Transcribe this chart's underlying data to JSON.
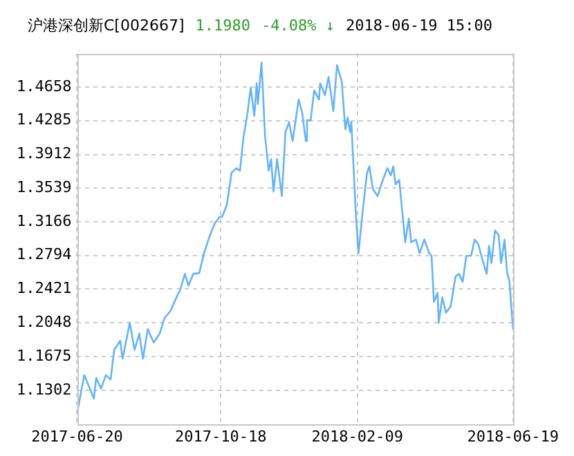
{
  "chart_data": {
    "type": "line",
    "title": "沪港深创新C[002667]",
    "annotations": [
      "1.1980",
      "-4.08% ↓",
      "2018-06-19 15:00"
    ],
    "x": [
      "2017-06-20",
      "2017-06-22",
      "2017-06-26",
      "2017-06-30",
      "2017-07-04",
      "2017-07-06",
      "2017-07-10",
      "2017-07-14",
      "2017-07-18",
      "2017-07-21",
      "2017-07-26",
      "2017-07-28",
      "2017-08-03",
      "2017-08-07",
      "2017-08-11",
      "2017-08-14",
      "2017-08-18",
      "2017-08-23",
      "2017-08-28",
      "2017-09-01",
      "2017-09-06",
      "2017-09-11",
      "2017-09-14",
      "2017-09-18",
      "2017-09-21",
      "2017-09-25",
      "2017-09-30",
      "2017-10-04",
      "2017-10-09",
      "2017-10-13",
      "2017-10-17",
      "2017-10-19",
      "2017-10-23",
      "2017-10-27",
      "2017-10-31",
      "2017-11-03",
      "2017-11-06",
      "2017-11-09",
      "2017-11-12",
      "2017-11-15",
      "2017-11-17",
      "2017-11-18",
      "2017-11-21",
      "2017-11-24",
      "2017-11-27",
      "2017-11-29",
      "2017-12-01",
      "2017-12-04",
      "2017-12-08",
      "2017-12-11",
      "2017-12-14",
      "2017-12-17",
      "2017-12-22",
      "2017-12-25",
      "2017-12-28",
      "2017-12-29",
      "2018-01-01",
      "2018-01-04",
      "2018-01-08",
      "2018-01-09",
      "2018-01-13",
      "2018-01-16",
      "2018-01-19",
      "2018-01-20",
      "2018-01-23",
      "2018-01-27",
      "2018-01-30",
      "2018-02-01",
      "2018-02-03",
      "2018-02-04",
      "2018-02-08",
      "2018-02-10",
      "2018-02-14",
      "2018-02-17",
      "2018-02-19",
      "2018-02-22",
      "2018-02-26",
      "2018-03-01",
      "2018-03-06",
      "2018-03-09",
      "2018-03-11",
      "2018-03-13",
      "2018-03-16",
      "2018-03-21",
      "2018-03-24",
      "2018-03-26",
      "2018-03-30",
      "2018-04-02",
      "2018-04-06",
      "2018-04-10",
      "2018-04-12",
      "2018-04-14",
      "2018-04-17",
      "2018-04-18",
      "2018-04-21",
      "2018-04-24",
      "2018-04-28",
      "2018-05-02",
      "2018-05-05",
      "2018-05-08",
      "2018-05-11",
      "2018-05-15",
      "2018-05-18",
      "2018-05-21",
      "2018-05-24",
      "2018-05-28",
      "2018-05-30",
      "2018-06-01",
      "2018-06-04",
      "2018-06-07",
      "2018-06-09",
      "2018-06-12",
      "2018-06-14",
      "2018-06-16",
      "2018-06-19"
    ],
    "series": [
      {
        "color": "#66b3f7",
        "values": [
          1.104,
          1.119,
          1.147,
          1.134,
          1.121,
          1.144,
          1.132,
          1.147,
          1.142,
          1.175,
          1.185,
          1.165,
          1.205,
          1.175,
          1.193,
          1.165,
          1.198,
          1.183,
          1.193,
          1.21,
          1.218,
          1.233,
          1.241,
          1.259,
          1.246,
          1.259,
          1.26,
          1.282,
          1.302,
          1.315,
          1.322,
          1.322,
          1.335,
          1.371,
          1.376,
          1.373,
          1.411,
          1.434,
          1.465,
          1.434,
          1.47,
          1.447,
          1.493,
          1.411,
          1.373,
          1.386,
          1.35,
          1.386,
          1.345,
          1.416,
          1.427,
          1.406,
          1.452,
          1.437,
          1.406,
          1.429,
          1.429,
          1.462,
          1.452,
          1.47,
          1.457,
          1.477,
          1.449,
          1.439,
          1.49,
          1.472,
          1.419,
          1.432,
          1.416,
          1.427,
          1.32,
          1.282,
          1.335,
          1.37,
          1.378,
          1.353,
          1.345,
          1.358,
          1.376,
          1.368,
          1.378,
          1.358,
          1.363,
          1.294,
          1.32,
          1.294,
          1.297,
          1.282,
          1.297,
          1.282,
          1.279,
          1.228,
          1.238,
          1.205,
          1.233,
          1.216,
          1.223,
          1.256,
          1.259,
          1.25,
          1.279,
          1.279,
          1.297,
          1.292,
          1.277,
          1.259,
          1.29,
          1.271,
          1.307,
          1.302,
          1.271,
          1.297,
          1.261,
          1.251,
          1.198
        ]
      }
    ],
    "xlim": [
      "2017-06-20",
      "2018-06-19"
    ],
    "xticks": [
      "2017-06-20",
      "2017-10-18",
      "2018-02-09",
      "2018-06-19"
    ],
    "ylim": [
      1.0929,
      1.5031
    ],
    "yticks": [
      1.1302,
      1.1675,
      1.2048,
      1.2421,
      1.2794,
      1.3166,
      1.3539,
      1.3912,
      1.4285,
      1.4658
    ],
    "grid": true,
    "legend": false,
    "marker": "none",
    "line_style": "solid"
  }
}
